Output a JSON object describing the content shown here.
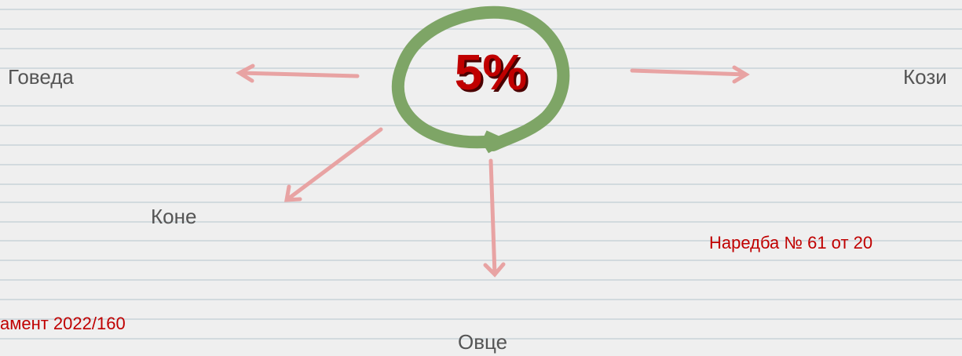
{
  "center": {
    "label": "5%"
  },
  "nodes": [
    {
      "label": "Говеда"
    },
    {
      "label": "Кози"
    },
    {
      "label": "Коне"
    },
    {
      "label": "Овце"
    }
  ],
  "notes": [
    {
      "text": "Наредба № 61 от 20"
    },
    {
      "text": "амент 2022/160"
    }
  ]
}
